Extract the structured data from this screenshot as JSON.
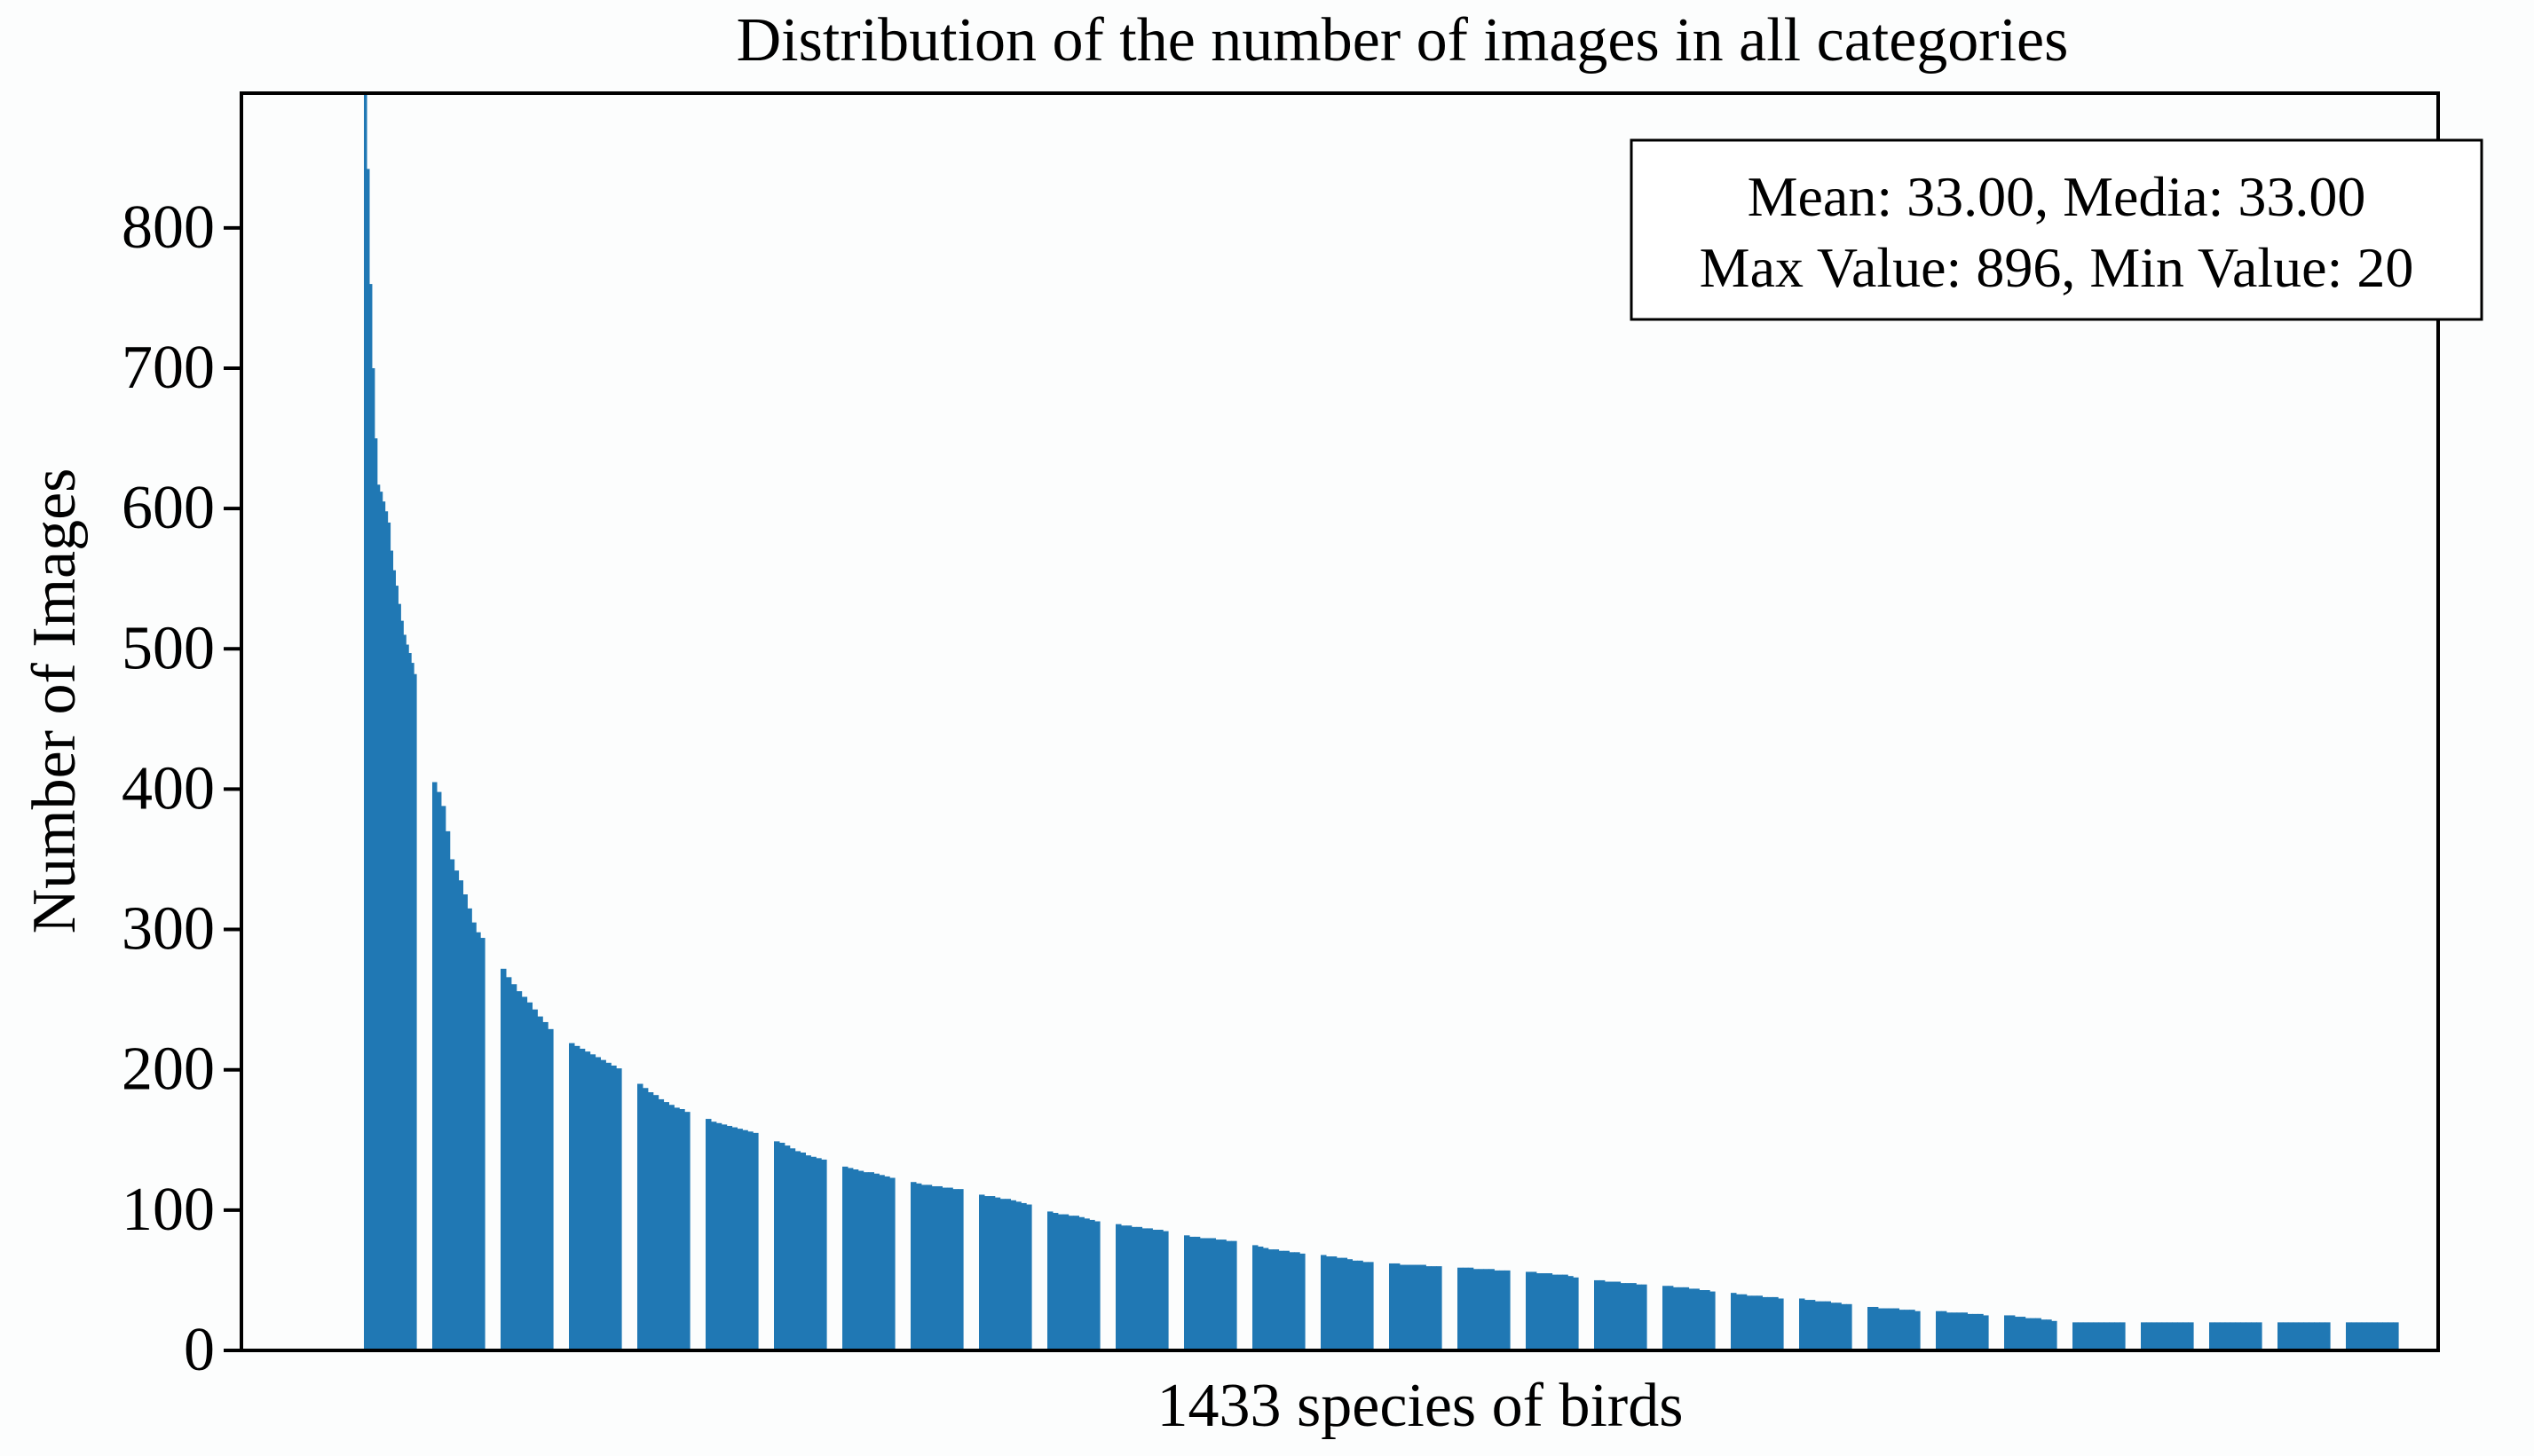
{
  "chart_data": {
    "type": "bar",
    "title": "Distribution of the number of images in all categories",
    "xlabel": "1433 species of birds",
    "ylabel": "Number of Images",
    "ylim": [
      0,
      896
    ],
    "yticks": [
      0,
      100,
      200,
      300,
      400,
      500,
      600,
      700,
      800
    ],
    "num_categories": 1433,
    "bar_color": "#2078b4",
    "grid": false,
    "annotation": {
      "line1": "Mean: 33.00, Media: 33.00",
      "line2": "Max Value: 896, Min Value: 20",
      "position": "top-right"
    },
    "series": [
      {
        "values": [
          [
            896,
            842,
            760,
            700,
            650,
            617,
            612,
            605,
            598,
            590,
            570,
            556,
            545,
            532,
            520,
            510,
            503,
            497,
            490,
            482
          ],
          [
            405,
            398,
            388,
            370,
            350,
            342,
            335,
            325,
            315,
            305,
            298,
            294
          ],
          [
            272,
            266,
            261,
            256,
            252,
            248,
            243,
            238,
            234,
            229
          ],
          [
            219,
            217,
            215,
            213,
            211,
            209,
            207,
            205,
            203,
            201
          ],
          [
            190,
            187,
            184,
            182,
            179,
            177,
            175,
            173,
            172,
            170
          ],
          [
            165,
            163,
            162,
            161,
            160,
            159,
            158,
            157,
            156,
            155
          ],
          [
            149,
            148,
            146,
            144,
            142,
            141,
            139,
            138,
            137,
            136
          ],
          [
            131,
            130,
            129,
            128,
            127,
            127,
            126,
            125,
            124,
            123
          ],
          [
            120,
            119,
            118,
            118,
            117,
            117,
            116,
            116,
            115,
            115
          ],
          [
            111,
            110,
            110,
            109,
            108,
            108,
            107,
            106,
            105,
            104
          ],
          [
            99,
            98,
            97,
            97,
            96,
            96,
            95,
            94,
            93,
            92
          ],
          [
            90,
            89,
            89,
            88,
            88,
            87,
            87,
            86,
            86,
            85
          ],
          [
            82,
            81,
            81,
            80,
            80,
            80,
            79,
            79,
            78,
            78
          ],
          [
            75,
            74,
            73,
            72,
            72,
            71,
            71,
            70,
            70,
            69
          ],
          [
            68,
            67,
            67,
            66,
            66,
            65,
            64,
            64,
            63,
            63
          ],
          [
            62,
            62,
            61,
            61,
            61,
            61,
            61,
            60,
            60,
            60
          ],
          [
            59,
            59,
            59,
            58,
            58,
            58,
            58,
            57,
            57,
            57
          ],
          [
            56,
            56,
            55,
            55,
            55,
            54,
            54,
            54,
            53,
            52
          ],
          [
            50,
            50,
            49,
            49,
            49,
            48,
            48,
            48,
            47,
            47
          ],
          [
            46,
            46,
            45,
            45,
            45,
            44,
            44,
            43,
            43,
            42
          ],
          [
            41,
            40,
            40,
            39,
            39,
            39,
            38,
            38,
            38,
            37
          ],
          [
            37,
            36,
            36,
            35,
            35,
            35,
            34,
            34,
            33,
            33
          ],
          [
            31,
            31,
            30,
            30,
            30,
            30,
            29,
            29,
            29,
            28
          ],
          [
            28,
            28,
            27,
            27,
            27,
            27,
            26,
            26,
            26,
            25
          ],
          [
            25,
            25,
            24,
            24,
            23,
            23,
            23,
            22,
            22,
            21
          ],
          [
            20,
            20,
            20,
            20,
            20,
            20,
            20,
            20,
            20,
            20
          ],
          [
            20,
            20,
            20,
            20,
            20,
            20,
            20,
            20,
            20,
            20
          ],
          [
            20,
            20,
            20,
            20,
            20,
            20,
            20,
            20,
            20,
            20
          ],
          [
            20,
            20,
            20,
            20,
            20,
            20,
            20,
            20,
            20,
            20
          ],
          [
            20,
            20,
            20,
            20,
            20,
            20,
            20,
            20,
            20,
            20
          ]
        ]
      }
    ]
  }
}
